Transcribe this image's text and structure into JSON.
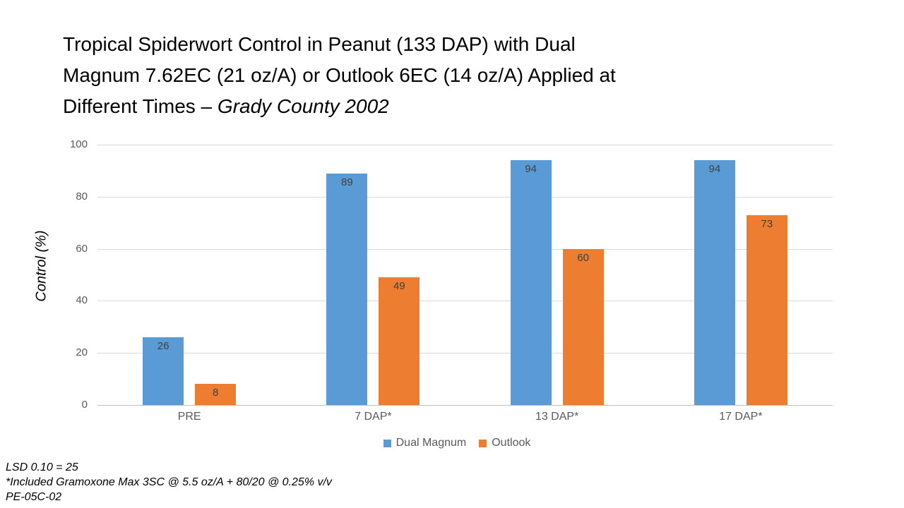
{
  "slide": {
    "title": {
      "line1": "Tropical Spiderwort Control in Peanut (133 DAP) with Dual",
      "line2": "Magnum 7.62EC (21 oz/A) or Outlook 6EC (14 oz/A) Applied at",
      "line3_prefix": "Different Times – ",
      "line3_italic": "Grady County 2002"
    },
    "footnotes": [
      "LSD 0.10 = 25",
      "*Included Gramoxone Max 3SC @ 5.5 oz/A + 80/20 @ 0.25% v/v",
      "PE-05C-02"
    ]
  },
  "chart_data": {
    "type": "bar",
    "title": "",
    "xlabel": "",
    "ylabel": "Control (%)",
    "categories": [
      "PRE",
      "7 DAP*",
      "13 DAP*",
      "17 DAP*"
    ],
    "series": [
      {
        "name": "Dual Magnum",
        "color": "#5B9BD5",
        "values": [
          26,
          89,
          94,
          94
        ]
      },
      {
        "name": "Outlook",
        "color": "#ED7D31",
        "values": [
          8,
          49,
          60,
          73
        ]
      }
    ],
    "ylim": [
      0,
      100
    ],
    "yticks": [
      0,
      20,
      40,
      60,
      80,
      100
    ],
    "grid": "horizontal",
    "legend_position": "bottom",
    "data_labels": "inside-end",
    "colors": {
      "gridline": "#D9D9D9",
      "axis_line": "#BFBFBF",
      "tick_text": "#595959",
      "category_text": "#595959",
      "value_label_text": "#404040",
      "legend_text": "#595959",
      "title_text": "#000000",
      "footnote_text": "#000000"
    }
  }
}
